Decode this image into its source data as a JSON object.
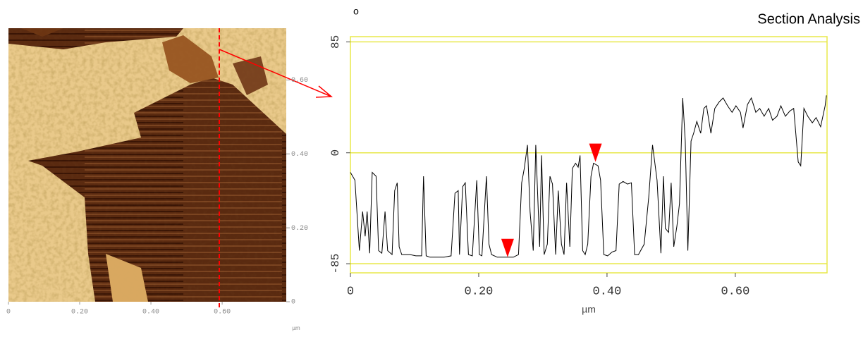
{
  "chart_data": [
    {
      "type": "image",
      "xlabel": "µm",
      "xlim": [
        0,
        0.78
      ],
      "ylim": [
        0,
        0.74
      ],
      "xticks": [
        0,
        {
          "value": 0.2,
          "label": "0.20"
        },
        {
          "value": 0.4,
          "label": "0.40"
        },
        {
          "value": 0.6,
          "label": "0.60"
        }
      ],
      "yticks": [
        0,
        {
          "value": 0.2,
          "label": "0.20"
        },
        {
          "value": 0.4,
          "label": "0.40"
        },
        {
          "value": 0.6,
          "label": "0.60"
        }
      ]
    },
    {
      "type": "line",
      "title": "Section Analysis",
      "annotation": "o",
      "xlabel": "µm",
      "color": "#000000",
      "frame_color": "#e8e84a",
      "grid": true,
      "xlim": [
        0,
        0.743
      ],
      "ylim": [
        -92,
        89
      ],
      "xticks": [
        0,
        {
          "value": 0.2,
          "label": "0.20"
        },
        {
          "value": 0.4,
          "label": "0.40"
        },
        {
          "value": 0.6,
          "label": "0.60"
        }
      ],
      "yticks": [
        -85,
        0,
        85
      ],
      "x": [
        0.0,
        0.007,
        0.014,
        0.019,
        0.023,
        0.026,
        0.03,
        0.034,
        0.04,
        0.044,
        0.049,
        0.054,
        0.058,
        0.065,
        0.069,
        0.073,
        0.076,
        0.08,
        0.087,
        0.093,
        0.102,
        0.111,
        0.114,
        0.118,
        0.124,
        0.146,
        0.157,
        0.163,
        0.168,
        0.17,
        0.175,
        0.179,
        0.184,
        0.19,
        0.197,
        0.201,
        0.205,
        0.212,
        0.216,
        0.22,
        0.229,
        0.236,
        0.245,
        0.254,
        0.262,
        0.267,
        0.271,
        0.276,
        0.28,
        0.285,
        0.289,
        0.295,
        0.298,
        0.302,
        0.307,
        0.311,
        0.315,
        0.32,
        0.324,
        0.329,
        0.333,
        0.337,
        0.342,
        0.346,
        0.351,
        0.355,
        0.358,
        0.362,
        0.366,
        0.37,
        0.375,
        0.379,
        0.386,
        0.39,
        0.395,
        0.401,
        0.408,
        0.414,
        0.419,
        0.425,
        0.432,
        0.438,
        0.443,
        0.449,
        0.458,
        0.465,
        0.471,
        0.478,
        0.484,
        0.488,
        0.491,
        0.496,
        0.5,
        0.504,
        0.509,
        0.513,
        0.518,
        0.522,
        0.526,
        0.531,
        0.535,
        0.54,
        0.546,
        0.551,
        0.555,
        0.562,
        0.568,
        0.575,
        0.581,
        0.588,
        0.595,
        0.601,
        0.608,
        0.612,
        0.619,
        0.625,
        0.632,
        0.638,
        0.645,
        0.652,
        0.658,
        0.665,
        0.671,
        0.678,
        0.685,
        0.691,
        0.698,
        0.702,
        0.707,
        0.713,
        0.72,
        0.726,
        0.733,
        0.74,
        0.742
      ],
      "values": [
        -15,
        -21,
        -75,
        -45,
        -64,
        -45,
        -77,
        -15,
        -18,
        -75,
        -77,
        -45,
        -75,
        -78,
        -29,
        -23,
        -72,
        -78,
        -78,
        -78,
        -79,
        -79,
        -18,
        -79,
        -80,
        -80,
        -79,
        -31,
        -29,
        -78,
        -26,
        -23,
        -78,
        -79,
        -21,
        -78,
        -79,
        -18,
        -70,
        -78,
        -80,
        -80,
        -80,
        -80,
        -78,
        -23,
        -12,
        6,
        -45,
        -75,
        6,
        -72,
        -2,
        -78,
        -70,
        -18,
        -24,
        -78,
        -29,
        -70,
        -78,
        -23,
        -72,
        -12,
        -8,
        -11,
        -2,
        -75,
        -78,
        -70,
        -18,
        -8,
        -10,
        -21,
        -78,
        -79,
        -76,
        -75,
        -24,
        -22,
        -24,
        -23,
        -78,
        -78,
        -70,
        -34,
        6,
        -21,
        -77,
        -18,
        -58,
        -61,
        -23,
        -72,
        -56,
        -39,
        42,
        9,
        -75,
        9,
        15,
        24,
        15,
        34,
        36,
        15,
        34,
        39,
        42,
        36,
        31,
        36,
        31,
        19,
        37,
        42,
        31,
        34,
        28,
        34,
        25,
        28,
        36,
        28,
        32,
        34,
        -7,
        -10,
        34,
        28,
        23,
        27,
        20,
        36,
        44
      ],
      "markers": [
        {
          "x": 0.245,
          "y": -80,
          "color": "#ff0000"
        },
        {
          "x": 0.382,
          "y": -7,
          "color": "#ff0000"
        }
      ]
    }
  ]
}
